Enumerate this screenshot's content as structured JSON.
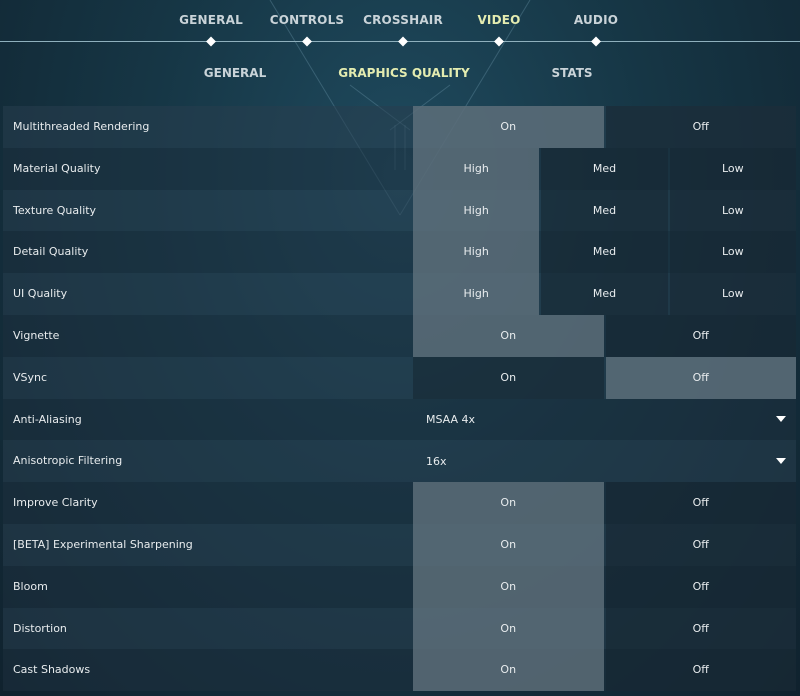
{
  "top_tabs": [
    {
      "label": "GENERAL",
      "active": false
    },
    {
      "label": "CONTROLS",
      "active": false
    },
    {
      "label": "CROSSHAIR",
      "active": false
    },
    {
      "label": "VIDEO",
      "active": true
    },
    {
      "label": "AUDIO",
      "active": false
    }
  ],
  "sub_tabs": [
    {
      "label": "GENERAL",
      "active": false
    },
    {
      "label": "GRAPHICS QUALITY",
      "active": true
    },
    {
      "label": "STATS",
      "active": false
    }
  ],
  "settings": [
    {
      "label": "Multithreaded Rendering",
      "type": "toggle",
      "options": [
        "On",
        "Off"
      ],
      "selected": "On"
    },
    {
      "label": "Material Quality",
      "type": "toggle",
      "options": [
        "High",
        "Med",
        "Low"
      ],
      "selected": "High"
    },
    {
      "label": "Texture Quality",
      "type": "toggle",
      "options": [
        "High",
        "Med",
        "Low"
      ],
      "selected": "High"
    },
    {
      "label": "Detail Quality",
      "type": "toggle",
      "options": [
        "High",
        "Med",
        "Low"
      ],
      "selected": "High"
    },
    {
      "label": "UI Quality",
      "type": "toggle",
      "options": [
        "High",
        "Med",
        "Low"
      ],
      "selected": "High"
    },
    {
      "label": "Vignette",
      "type": "toggle",
      "options": [
        "On",
        "Off"
      ],
      "selected": "On"
    },
    {
      "label": "VSync",
      "type": "toggle",
      "options": [
        "On",
        "Off"
      ],
      "selected": "Off"
    },
    {
      "label": "Anti-Aliasing",
      "type": "dropdown",
      "value": "MSAA 4x"
    },
    {
      "label": "Anisotropic Filtering",
      "type": "dropdown",
      "value": "16x"
    },
    {
      "label": "Improve Clarity",
      "type": "toggle",
      "options": [
        "On",
        "Off"
      ],
      "selected": "On"
    },
    {
      "label": "[BETA] Experimental Sharpening",
      "type": "toggle",
      "options": [
        "On",
        "Off"
      ],
      "selected": "On"
    },
    {
      "label": "Bloom",
      "type": "toggle",
      "options": [
        "On",
        "Off"
      ],
      "selected": "On"
    },
    {
      "label": "Distortion",
      "type": "toggle",
      "options": [
        "On",
        "Off"
      ],
      "selected": "On"
    },
    {
      "label": "Cast Shadows",
      "type": "toggle",
      "options": [
        "On",
        "Off"
      ],
      "selected": "On"
    }
  ]
}
